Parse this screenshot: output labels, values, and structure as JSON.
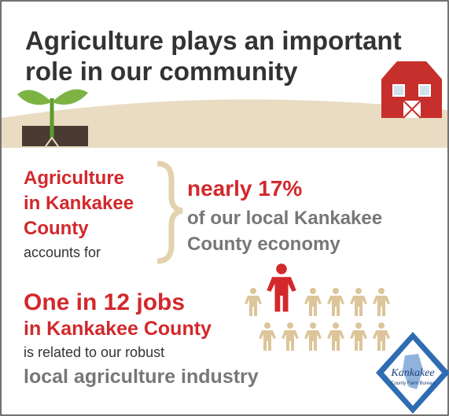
{
  "header": {
    "title_lines": [
      "Agriculture plays an important",
      "role in our community"
    ]
  },
  "economy": {
    "subject_lines": [
      "Agriculture",
      "in Kankakee",
      "County"
    ],
    "verb": "accounts for",
    "highlight": "nearly 17%",
    "rest_lines": [
      "of our local Kankakee",
      "County economy"
    ]
  },
  "jobs": {
    "highlight_lines": [
      "One in 12 jobs",
      "in Kankakee County"
    ],
    "verb": "is related to our robust",
    "rest": "local agriculture industry"
  },
  "logo": {
    "name": "Kankakee",
    "subtitle": "County Farm Bureau"
  }
}
